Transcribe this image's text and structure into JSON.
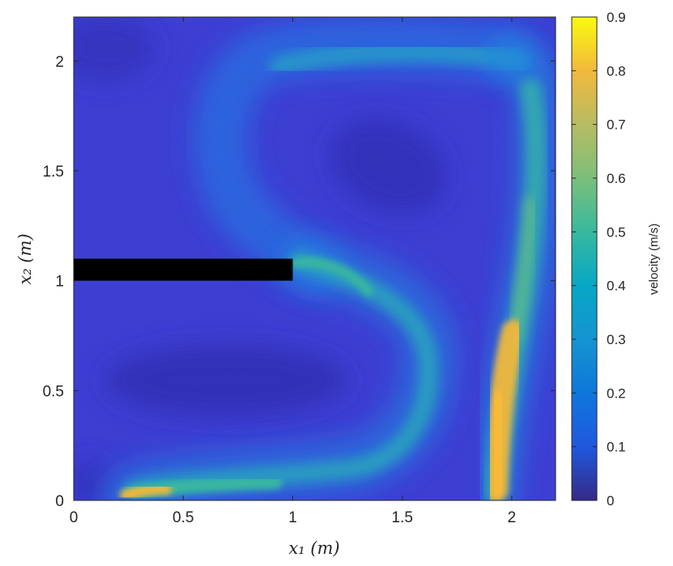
{
  "chart_data": {
    "type": "heatmap",
    "title": "",
    "xlabel": "x₁ (m)",
    "ylabel": "x₂ (m)",
    "xlim": [
      0,
      2.2
    ],
    "ylim": [
      0,
      2.2
    ],
    "x_ticks": [
      {
        "value": 0,
        "label": "0"
      },
      {
        "value": 0.5,
        "label": "0.5"
      },
      {
        "value": 1,
        "label": "1"
      },
      {
        "value": 1.5,
        "label": "1.5"
      },
      {
        "value": 2,
        "label": "2"
      }
    ],
    "y_ticks": [
      {
        "value": 0,
        "label": "0"
      },
      {
        "value": 0.5,
        "label": "0.5"
      },
      {
        "value": 1,
        "label": "1"
      },
      {
        "value": 1.5,
        "label": "1.5"
      },
      {
        "value": 2,
        "label": "2"
      }
    ],
    "colorbar": {
      "label": "velocity (m/s)",
      "range": [
        0,
        0.9
      ],
      "colormap": "parula",
      "ticks": [
        {
          "value": 0,
          "label": "0"
        },
        {
          "value": 0.1,
          "label": "0.1"
        },
        {
          "value": 0.2,
          "label": "0.2"
        },
        {
          "value": 0.3,
          "label": "0.3"
        },
        {
          "value": 0.4,
          "label": "0.4"
        },
        {
          "value": 0.5,
          "label": "0.5"
        },
        {
          "value": 0.6,
          "label": "0.6"
        },
        {
          "value": 0.7,
          "label": "0.7"
        },
        {
          "value": 0.8,
          "label": "0.8"
        },
        {
          "value": 0.9,
          "label": "0.9"
        }
      ]
    },
    "obstacle": {
      "x_range": [
        0,
        1
      ],
      "y_range": [
        1,
        1.1
      ],
      "color": "#000000"
    },
    "flow_features": [
      {
        "name": "left-vertical-jet",
        "path": [
          [
            0.23,
            0.02
          ],
          [
            0.36,
            0.02
          ],
          [
            1.2,
            0.1
          ],
          [
            1.5,
            0.3
          ],
          [
            1.55,
            0.7
          ],
          [
            1.3,
            1.0
          ],
          [
            1.0,
            1.1
          ]
        ],
        "peak_velocity": 0.75
      },
      {
        "name": "right-wall-jet",
        "path": [
          [
            1.93,
            0.02
          ],
          [
            1.95,
            0.3
          ],
          [
            2.0,
            0.7
          ],
          [
            2.08,
            1.2
          ],
          [
            2.12,
            1.6
          ],
          [
            2.05,
            1.95
          ]
        ],
        "peak_velocity": 0.75
      },
      {
        "name": "top-return-flow",
        "path": [
          [
            1.95,
            2.0
          ],
          [
            1.5,
            2.02
          ],
          [
            0.95,
            1.95
          ],
          [
            0.82,
            1.6
          ],
          [
            1.0,
            1.3
          ],
          [
            1.15,
            1.1
          ]
        ],
        "peak_velocity": 0.45
      },
      {
        "name": "lower-vortex-core",
        "center": [
          0.7,
          0.6
        ],
        "velocity": 0.02
      },
      {
        "name": "upper-vortex-core",
        "center": [
          1.45,
          1.5
        ],
        "velocity": 0.03
      }
    ],
    "grid": false
  }
}
